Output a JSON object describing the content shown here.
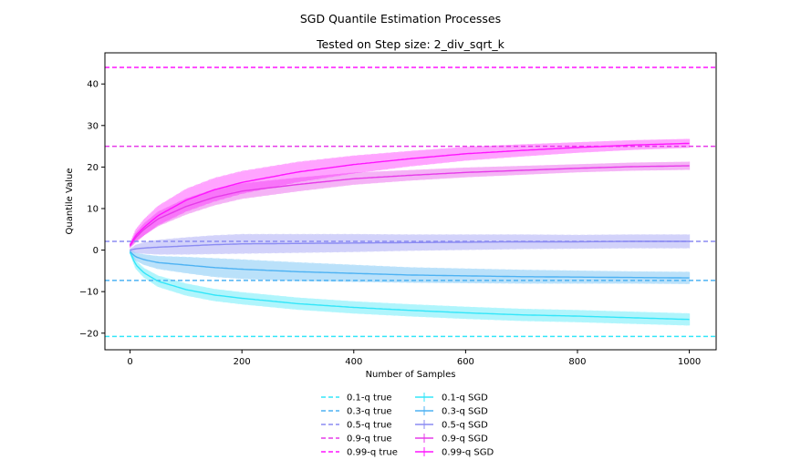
{
  "figure": {
    "suptitle": "SGD Quantile Estimation Processes"
  },
  "chart_data": {
    "type": "line",
    "title": "Tested on Step size: 2_div_sqrt_k",
    "xlabel": "Number of Samples",
    "ylabel": "Quantile Value",
    "xlim": [
      -45,
      1048
    ],
    "ylim": [
      -24,
      47.5
    ],
    "xticks": [
      0,
      200,
      400,
      600,
      800,
      1000
    ],
    "yticks": [
      -20,
      -10,
      0,
      10,
      20,
      30,
      40
    ],
    "grid": false,
    "legend_placement": "bottom-center, below plot, 2 columns",
    "true_lines": [
      {
        "name": "0.1-q true",
        "y": -20.8,
        "color": "#33e6f9"
      },
      {
        "name": "0.3-q true",
        "y": -7.3,
        "color": "#4db2f3"
      },
      {
        "name": "0.5-q true",
        "y": 2.1,
        "color": "#8b8bf2"
      },
      {
        "name": "0.9-q true",
        "y": 25.0,
        "color": "#e63be9"
      },
      {
        "name": "0.99-q true",
        "y": 44.0,
        "color": "#ff14ff"
      }
    ],
    "series": [
      {
        "name": "0.1-q SGD",
        "color": "#33e6f9",
        "x": [
          0,
          10,
          25,
          50,
          100,
          150,
          200,
          300,
          400,
          500,
          600,
          700,
          800,
          900,
          1000
        ],
        "y": [
          -0.5,
          -3.5,
          -5.5,
          -7.5,
          -9.5,
          -10.8,
          -11.6,
          -12.9,
          -13.8,
          -14.5,
          -15.1,
          -15.6,
          -15.9,
          -16.3,
          -16.7
        ],
        "err": [
          0.5,
          1.0,
          1.2,
          1.4,
          1.5,
          1.5,
          1.5,
          1.5,
          1.5,
          1.5,
          1.5,
          1.5,
          1.5,
          1.5,
          1.5
        ]
      },
      {
        "name": "0.3-q SGD",
        "color": "#4db2f3",
        "x": [
          0,
          10,
          25,
          50,
          100,
          150,
          200,
          300,
          400,
          500,
          600,
          700,
          800,
          900,
          1000
        ],
        "y": [
          -0.4,
          -1.6,
          -2.3,
          -3.0,
          -3.6,
          -4.2,
          -4.6,
          -5.2,
          -5.6,
          -6.0,
          -6.2,
          -6.4,
          -6.5,
          -6.6,
          -6.7
        ],
        "err": [
          0.4,
          1.0,
          1.3,
          1.6,
          2.0,
          2.3,
          2.4,
          2.3,
          2.1,
          1.9,
          1.8,
          1.7,
          1.6,
          1.5,
          1.5
        ]
      },
      {
        "name": "0.5-q SGD",
        "color": "#8b8bf2",
        "x": [
          0,
          10,
          25,
          50,
          100,
          150,
          200,
          300,
          400,
          500,
          600,
          700,
          800,
          900,
          1000
        ],
        "y": [
          0,
          0.3,
          0.5,
          0.7,
          1.0,
          1.3,
          1.5,
          1.6,
          1.7,
          1.8,
          1.9,
          2.0,
          2.0,
          2.1,
          2.1
        ],
        "err": [
          0.3,
          1.0,
          1.4,
          1.8,
          2.1,
          2.3,
          2.4,
          2.3,
          2.2,
          2.0,
          1.9,
          1.8,
          1.7,
          1.7,
          1.7
        ]
      },
      {
        "name": "0.9-q SGD",
        "color": "#e63be9",
        "x": [
          0,
          10,
          25,
          50,
          100,
          150,
          200,
          300,
          400,
          500,
          600,
          700,
          800,
          900,
          1000
        ],
        "y": [
          1.0,
          3.0,
          5.0,
          7.5,
          10.5,
          12.7,
          14.2,
          15.8,
          17.2,
          18.0,
          18.7,
          19.2,
          19.7,
          20.1,
          20.3
        ],
        "err": [
          0.5,
          1.2,
          1.5,
          1.8,
          2.0,
          2.0,
          1.9,
          1.7,
          1.5,
          1.3,
          1.2,
          1.1,
          1.0,
          1.0,
          1.0
        ]
      },
      {
        "name": "0.99-q SGD",
        "color": "#ff14ff",
        "x": [
          0,
          10,
          25,
          50,
          100,
          150,
          200,
          300,
          400,
          500,
          600,
          700,
          800,
          900,
          1000
        ],
        "y": [
          1.2,
          3.5,
          5.5,
          8.3,
          12.0,
          14.5,
          16.3,
          18.8,
          20.6,
          22.0,
          23.2,
          24.0,
          24.7,
          25.3,
          25.7
        ],
        "err": [
          0.5,
          1.5,
          2.0,
          2.4,
          2.8,
          2.9,
          2.8,
          2.5,
          2.2,
          1.9,
          1.7,
          1.5,
          1.3,
          1.2,
          1.1
        ]
      }
    ]
  }
}
